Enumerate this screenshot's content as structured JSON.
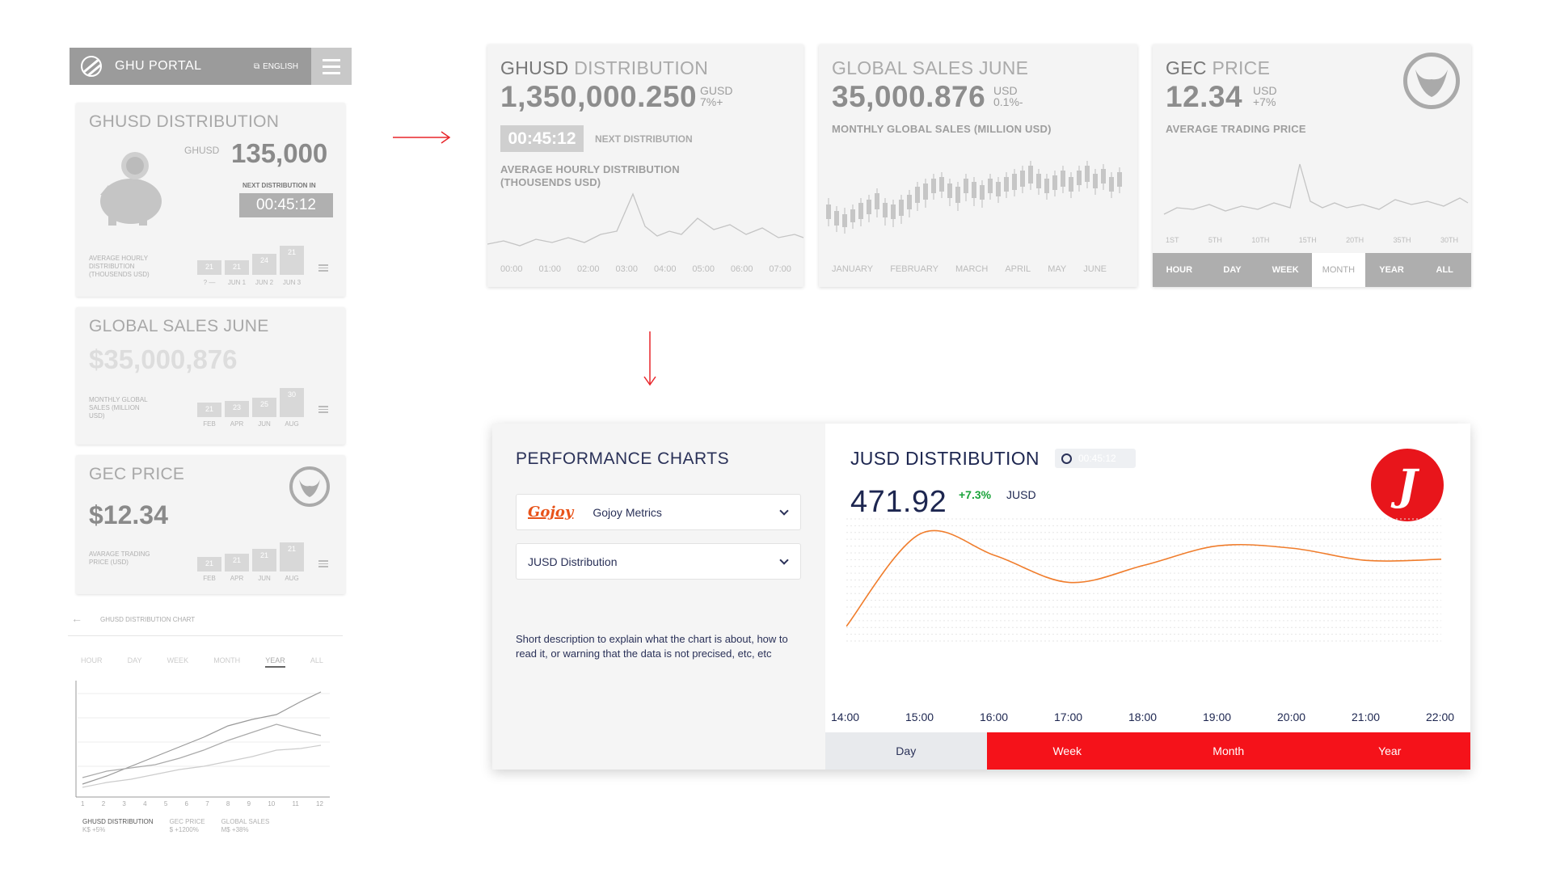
{
  "mobile": {
    "portal": {
      "title": "GHU PORTAL",
      "lang": "ENGLISH"
    },
    "card1": {
      "title": "GHUSD DISTRIBUTION",
      "unit": "GHUSD",
      "value": "135,000",
      "next_label": "NEXT DISTRIBUTION IN",
      "timer": "00:45:12",
      "caption": "AVERAGE HOURLY DISTRIBUTION (THOUSENDS USD)",
      "bars": [
        {
          "v": "21",
          "l": "? —"
        },
        {
          "v": "21",
          "l": "JUN 1"
        },
        {
          "v": "24",
          "l": "JUN 2"
        },
        {
          "v": "21",
          "l": "JUN 3"
        }
      ]
    },
    "card2": {
      "title": "GLOBAL SALES JUNE",
      "value": "$35,000,876",
      "caption": "MONTHLY GLOBAL SALES (MILLION USD)",
      "bars": [
        {
          "v": "21",
          "l": "FEB"
        },
        {
          "v": "23",
          "l": "APR"
        },
        {
          "v": "25",
          "l": "JUN"
        },
        {
          "v": "30",
          "l": "AUG"
        }
      ]
    },
    "card3": {
      "title": "GEC PRICE",
      "value": "$12.34",
      "caption": "AVARAGE TRADING PRICE (USD)",
      "bars": [
        {
          "v": "21",
          "l": "FEB"
        },
        {
          "v": "21",
          "l": "APR"
        },
        {
          "v": "21",
          "l": "JUN"
        },
        {
          "v": "21",
          "l": "AUG"
        }
      ]
    },
    "chart": {
      "title": "GHUSD DISTRIBUTION CHART",
      "tabs": [
        "HOUR",
        "DAY",
        "WEEK",
        "MONTH",
        "YEAR",
        "ALL"
      ],
      "x": [
        "1",
        "2",
        "3",
        "4",
        "5",
        "6",
        "7",
        "8",
        "9",
        "10",
        "11",
        "12"
      ],
      "legend": [
        {
          "name": "GHUSD DISTRIBUTION",
          "sub": "K$ +5%"
        },
        {
          "name": "GEC PRICE",
          "sub": "$ +1200%"
        },
        {
          "name": "GLOBAL SALES",
          "sub": "M$ +38%"
        }
      ]
    }
  },
  "wire": {
    "c1": {
      "title_a": "GHUSD",
      "title_b": " DISTRIBUTION",
      "value": "1,350,000.250",
      "unit": "GUSD",
      "change": "7%+",
      "timer": "00:45:12",
      "next": "NEXT DISTRIBUTION",
      "caption": "AVERAGE HOURLY DISTRIBUTION (THOUSENDS USD)",
      "x": [
        "00:00",
        "01:00",
        "02:00",
        "03:00",
        "04:00",
        "05:00",
        "06:00",
        "07:00"
      ]
    },
    "c2": {
      "title": "GLOBAL SALES JUNE",
      "value": "35,000.876",
      "unit": "USD",
      "change": "0.1%-",
      "caption": "MONTHLY GLOBAL SALES (MILLION USD)",
      "x": [
        "JANUARY",
        "FEBRUARY",
        "MARCH",
        "APRIL",
        "MAY",
        "JUNE"
      ]
    },
    "c3": {
      "title_a": "GEC",
      "title_b": " PRICE",
      "value": "12.34",
      "unit": "USD",
      "change": "+7%",
      "caption": "AVERAGE TRADING PRICE",
      "x": [
        "1ST",
        "5TH",
        "10TH",
        "15TH",
        "20TH",
        "35TH",
        "30TH"
      ],
      "tabs": [
        "HOUR",
        "DAY",
        "WEEK",
        "MONTH",
        "YEAR",
        "ALL"
      ]
    }
  },
  "final": {
    "heading": "PERFORMANCE CHARTS",
    "select1": {
      "brand": "Gojoy",
      "label": "Gojoy Metrics"
    },
    "select2": {
      "label": "JUSD Distribution"
    },
    "description": "Short description to explain what the chart is about, how to read it, or warning that the data is not precised, etc, etc",
    "title": "JUSD DISTRIBUTION",
    "timer": "00:45:12",
    "value": "471.92",
    "change": "+7.3%",
    "currency": "JUSD",
    "logo": "J",
    "buttons": [
      "Day",
      "Week",
      "Month",
      "Year"
    ],
    "accent": "#f5121a",
    "line_color": "#f07d2c"
  },
  "chart_data": {
    "type": "line",
    "x": [
      "14:00",
      "15:00",
      "16:00",
      "17:00",
      "18:00",
      "19:00",
      "20:00",
      "21:00",
      "22:00"
    ],
    "series": [
      {
        "values": [
          1.2,
          8.8,
          7.0,
          4.8,
          6.2,
          7.8,
          7.6,
          6.6,
          6.7
        ]
      }
    ],
    "xlabel": "",
    "ylabel": "",
    "ylim": [
      0,
      10
    ],
    "grid": true
  }
}
